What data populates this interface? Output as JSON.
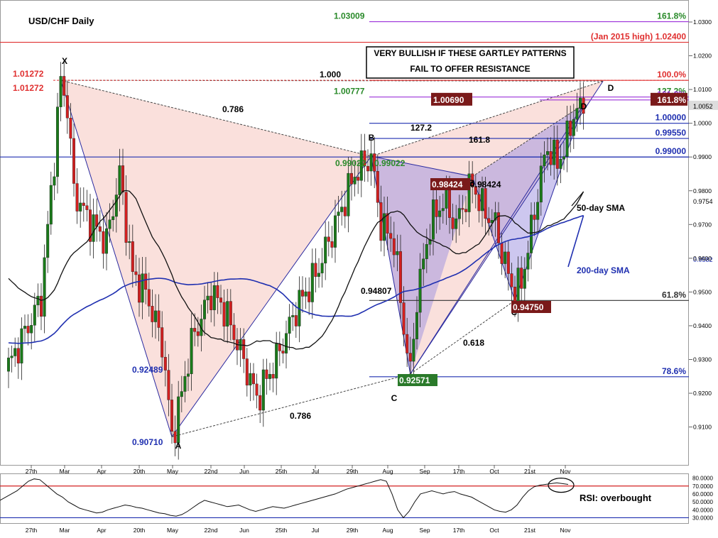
{
  "chart_data": [
    {
      "type": "candlestick",
      "title": "USD/CHF Daily",
      "ylim": [
        0.9,
        1.033
      ],
      "y_ticks": [
        {
          "value": 1.03,
          "label": "1.0300"
        },
        {
          "value": 1.02,
          "label": "1.0200"
        },
        {
          "value": 1.01,
          "label": "1.0100"
        },
        {
          "value": 1.0,
          "label": "1.0000"
        },
        {
          "value": 0.99,
          "label": "0.9900"
        },
        {
          "value": 0.98,
          "label": "0.9800"
        },
        {
          "value": 0.97,
          "label": "0.9700"
        },
        {
          "value": 0.96,
          "label": "0.9600"
        },
        {
          "value": 0.95,
          "label": "0.9500"
        },
        {
          "value": 0.94,
          "label": "0.9400"
        },
        {
          "value": 0.93,
          "label": "0.9300"
        },
        {
          "value": 0.92,
          "label": "0.9200"
        },
        {
          "value": 0.91,
          "label": "0.9100"
        }
      ],
      "current_price": {
        "value": 1.0052,
        "label": "1.0052"
      },
      "sma50_price": {
        "value": 0.97545,
        "label": "0.9754"
      },
      "sma200_price": {
        "value": 0.9582,
        "label": "0.9582"
      },
      "x_ticks": [
        "27th",
        "Mar",
        "Apr",
        "20th",
        "May",
        "22nd",
        "Jun",
        "25th",
        "Jul",
        "29th",
        "Aug",
        "Sep",
        "17th",
        "Oct",
        "21st",
        "Nov"
      ],
      "pattern_points": [
        {
          "name": "X",
          "value": 1.01272
        },
        {
          "name": "A",
          "value": 0.9071
        },
        {
          "name": "B",
          "value": 0.99022
        },
        {
          "name": "C",
          "value": 0.92571
        },
        {
          "name": "D",
          "value": 1.0125
        },
        {
          "name": "A",
          "value": 0.92571
        },
        {
          "name": "B",
          "value": 0.98424
        },
        {
          "name": "C",
          "value": 0.9475
        },
        {
          "name": "D",
          "value": 1.0055
        }
      ],
      "price_labels": [
        {
          "text": "1.01272",
          "value": 1.01272
        },
        {
          "text": "1.01272",
          "value": 1.01272
        },
        {
          "text": "0.90710",
          "value": 0.9071
        },
        {
          "text": "0.99022",
          "value": 0.99022
        },
        {
          "text": "0.99022",
          "value": 0.99022
        },
        {
          "text": "0.92571",
          "value": 0.92571
        },
        {
          "text": "0.98424",
          "value": 0.98424
        },
        {
          "text": "0.98424",
          "value": 0.98424
        },
        {
          "text": "0.94750",
          "value": 0.9475
        },
        {
          "text": "0.94807",
          "value": 0.94807
        },
        {
          "text": "0.92489",
          "value": 0.92489
        }
      ],
      "ratio_labels": [
        "0.786",
        "1.000",
        "127.2",
        "161.8",
        "0.786",
        "0.618"
      ],
      "levels": [
        {
          "value": 1.03009,
          "label": "1.03009",
          "pct": "161.8%",
          "color": "#9b30d9"
        },
        {
          "value": 1.024,
          "label": "(Jan 2015 high)  1.02400",
          "color": "#e03030"
        },
        {
          "value": 1.01272,
          "label": "",
          "pct": "100.0%",
          "color": "#e03030"
        },
        {
          "value": 1.00777,
          "label": "1.00777",
          "pct": "127.2%",
          "color": "#9b30d9"
        },
        {
          "value": 1.0069,
          "label": "1.00690",
          "pct": "161.8%",
          "color": "#9b30d9"
        },
        {
          "value": 1.0,
          "label": "1.00000",
          "color": "#1f2fb0"
        },
        {
          "value": 0.9955,
          "label": "0.99550",
          "color": "#1f2fb0"
        },
        {
          "value": 0.99,
          "label": "0.99000",
          "color": "#1f2fb0"
        },
        {
          "value": 0.9475,
          "label": "",
          "pct": "61.8%",
          "color": "#333333"
        },
        {
          "value": 0.92489,
          "label": "",
          "pct": "78.6%",
          "color": "#1f2fb0"
        }
      ],
      "annotations": {
        "note_line1": "VERY BULLISH IF THESE GARTLEY PATTERNS",
        "note_line2": "FAIL TO OFFER RESISTANCE",
        "sma50_label": "50-day SMA",
        "sma200_label": "200-day SMA"
      },
      "colors": {
        "bull": "#1a7a1a",
        "bear": "#d22020",
        "sma50": "#111111",
        "sma200": "#1f2fb0",
        "red_level": "#e03030",
        "purple_level": "#9b30d9",
        "blue_level": "#1f2fb0",
        "green_text": "#2a8a2a",
        "maroon_box": "#7a1a1a",
        "green_box": "#2a7a2a"
      }
    },
    {
      "type": "line",
      "title": "RSI",
      "ylim": [
        25,
        85
      ],
      "y_ticks": [
        {
          "value": 80,
          "label": "80.0000"
        },
        {
          "value": 70,
          "label": "70.0000"
        },
        {
          "value": 60,
          "label": "60.0000"
        },
        {
          "value": 50,
          "label": "50.0000"
        },
        {
          "value": 40,
          "label": "40.0000"
        },
        {
          "value": 30,
          "label": "30.0000"
        }
      ],
      "overbought": 70,
      "oversold": 30,
      "annotation": "RSI: overbought",
      "series": [
        {
          "values": [
            52,
            56,
            60,
            64,
            70,
            76,
            79,
            78,
            72,
            66,
            60,
            56,
            50,
            46,
            42,
            40,
            38,
            36,
            37,
            40,
            42,
            44,
            46,
            45,
            43,
            42,
            40,
            38,
            36,
            35,
            33,
            32,
            34,
            38,
            43,
            48,
            52,
            50,
            48,
            46,
            44,
            45,
            46,
            43,
            40,
            38,
            40,
            42,
            44,
            43,
            42,
            44,
            46,
            48,
            50,
            52,
            54,
            56,
            58,
            60,
            63,
            66,
            68,
            70,
            72,
            74,
            76,
            78,
            76,
            60,
            40,
            30,
            38,
            50,
            60,
            62,
            64,
            62,
            60,
            62,
            63,
            60,
            58,
            56,
            52,
            48,
            44,
            40,
            38,
            37,
            40,
            46,
            56,
            64,
            69,
            71,
            72,
            73,
            74,
            73,
            72
          ]
        }
      ]
    }
  ]
}
